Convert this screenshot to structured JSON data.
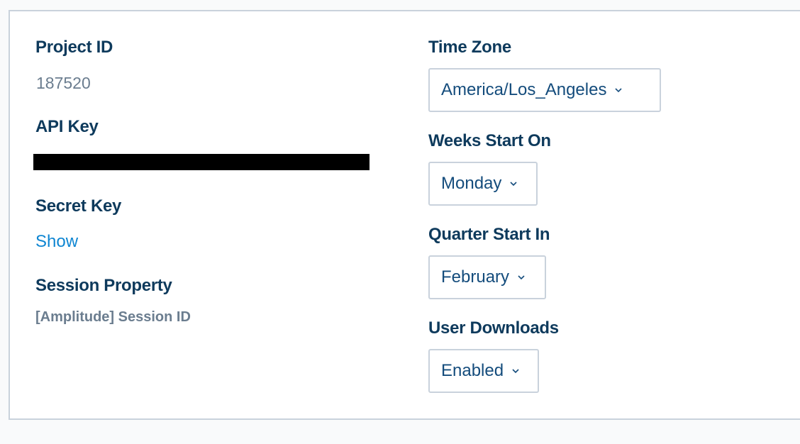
{
  "left": {
    "project_id": {
      "label": "Project ID",
      "value": "187520"
    },
    "api_key": {
      "label": "API Key",
      "value_redacted": true
    },
    "secret_key": {
      "label": "Secret Key",
      "link": "Show"
    },
    "session_property": {
      "label": "Session Property",
      "value": "[Amplitude] Session ID"
    }
  },
  "right": {
    "time_zone": {
      "label": "Time Zone",
      "value": "America/Los_Angeles"
    },
    "weeks_start": {
      "label": "Weeks Start On",
      "value": "Monday"
    },
    "quarter_start": {
      "label": "Quarter Start In",
      "value": "February"
    },
    "user_downloads": {
      "label": "User Downloads",
      "value": "Enabled"
    }
  },
  "icons": {
    "dropdown": "chevron-down-icon"
  },
  "colors": {
    "label": "#0e3a5c",
    "value": "#6b7d8f",
    "link": "#0f86d2",
    "dropdown_text": "#144c7c",
    "border": "#c9d2dc"
  }
}
